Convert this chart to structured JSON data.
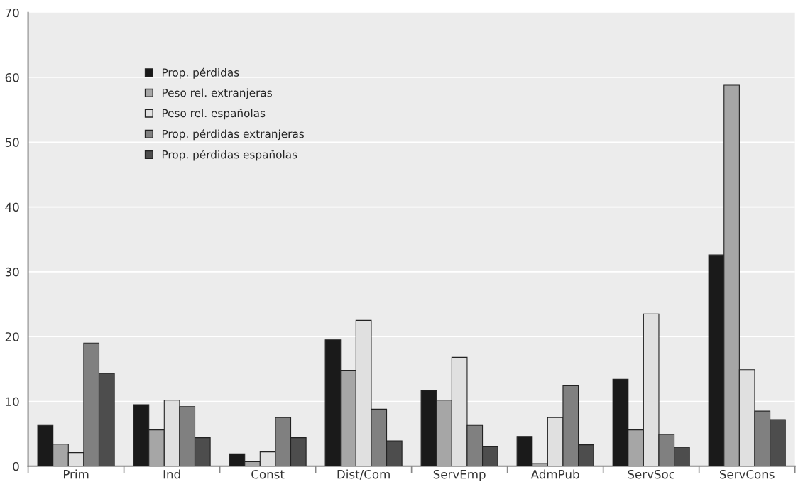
{
  "chart_data": {
    "type": "bar",
    "categories": [
      "Prim",
      "Ind",
      "Const",
      "Dist/Com",
      "ServEmp",
      "AdmPub",
      "ServSoc",
      "ServCons"
    ],
    "series": [
      {
        "name": "Prop. pérdidas",
        "color": "#1a1a1a",
        "values": [
          6.3,
          9.5,
          1.9,
          19.5,
          11.7,
          4.6,
          13.4,
          32.6
        ]
      },
      {
        "name": "Peso rel. extranjeras",
        "color": "#a6a6a6",
        "values": [
          3.4,
          5.6,
          0.7,
          14.8,
          10.2,
          0.4,
          5.6,
          58.8
        ]
      },
      {
        "name": "Peso rel. españolas",
        "color": "#e0e0e0",
        "values": [
          2.1,
          10.2,
          2.2,
          22.5,
          16.8,
          7.5,
          23.5,
          14.9
        ]
      },
      {
        "name": "Prop. pérdidas extranjeras",
        "color": "#808080",
        "values": [
          19.0,
          9.2,
          7.5,
          8.8,
          6.3,
          12.4,
          4.9,
          8.5
        ]
      },
      {
        "name": "Prop. pérdidas españolas",
        "color": "#4d4d4d",
        "values": [
          14.3,
          4.4,
          4.4,
          3.9,
          3.1,
          3.3,
          2.9,
          7.2
        ]
      }
    ],
    "ylim": [
      0,
      70
    ],
    "yticks": [
      0,
      10,
      20,
      30,
      40,
      50,
      60,
      70
    ],
    "grid": "y",
    "legend": "top left"
  }
}
